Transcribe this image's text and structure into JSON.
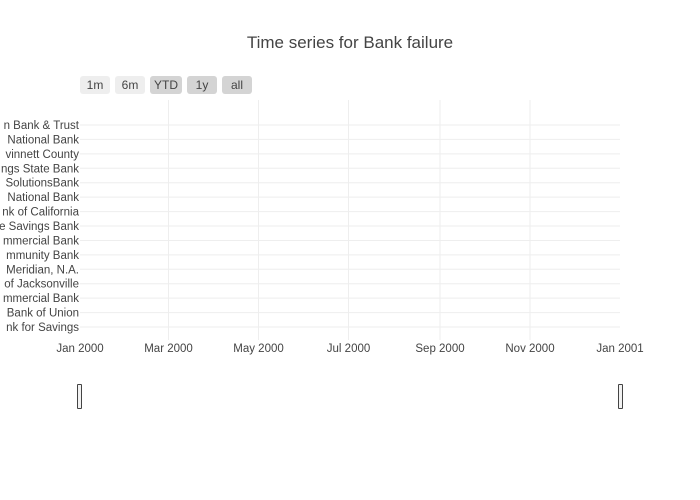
{
  "chart_data": {
    "type": "scatter",
    "title": "Time series for Bank failure",
    "xlabel": "",
    "ylabel": "",
    "x_range": [
      "2000-01-01",
      "2001-01-01"
    ],
    "x_ticks": [
      {
        "date": "2000-01-01",
        "label": "Jan 2000"
      },
      {
        "date": "2000-03-01",
        "label": "Mar 2000"
      },
      {
        "date": "2000-05-01",
        "label": "May 2000"
      },
      {
        "date": "2000-07-01",
        "label": "Jul 2000"
      },
      {
        "date": "2000-09-01",
        "label": "Sep 2000"
      },
      {
        "date": "2000-11-01",
        "label": "Nov 2000"
      },
      {
        "date": "2001-01-01",
        "label": "Jan 2001"
      }
    ],
    "categories": [
      "n Bank & Trust",
      "National Bank",
      "vinnett County",
      "ngs State Bank",
      "SolutionsBank",
      "National Bank",
      "nk of California",
      "e Savings Bank",
      "mmercial Bank",
      "mmunity Bank",
      "Meridian, N.A.",
      "of Jacksonville",
      "mmercial Bank",
      "Bank of Union",
      "nk for Savings"
    ],
    "grid": true,
    "series": []
  },
  "range_selector": {
    "buttons": [
      "1m",
      "6m",
      "YTD",
      "1y",
      "all"
    ],
    "active": [
      "YTD",
      "1y",
      "all"
    ]
  }
}
